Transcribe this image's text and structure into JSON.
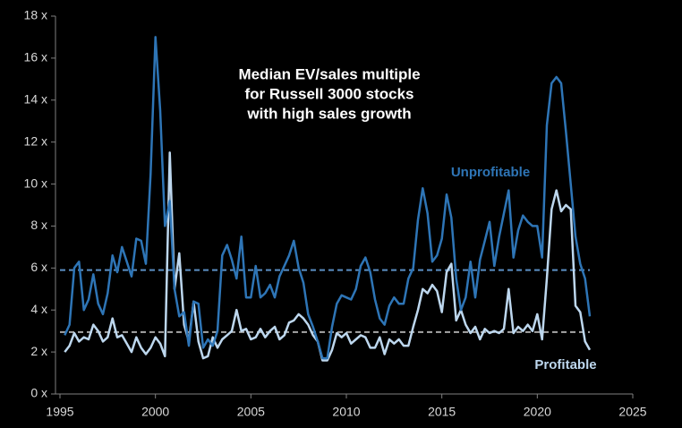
{
  "chart_data": {
    "type": "line",
    "title": [
      "Median EV/sales multiple",
      "for Russell 3000 stocks",
      "with high sales growth"
    ],
    "x": [
      1995.25,
      1995.5,
      1995.75,
      1996,
      1996.25,
      1996.5,
      1996.75,
      1997,
      1997.25,
      1997.5,
      1997.75,
      1998,
      1998.25,
      1998.5,
      1998.75,
      1999,
      1999.25,
      1999.5,
      1999.75,
      2000,
      2000.25,
      2000.5,
      2000.75,
      2001,
      2001.25,
      2001.5,
      2001.75,
      2002,
      2002.25,
      2002.5,
      2002.75,
      2003,
      2003.25,
      2003.5,
      2003.75,
      2004,
      2004.25,
      2004.5,
      2004.75,
      2005,
      2005.25,
      2005.5,
      2005.75,
      2006,
      2006.25,
      2006.5,
      2006.75,
      2007,
      2007.25,
      2007.5,
      2007.75,
      2008,
      2008.25,
      2008.5,
      2008.75,
      2009,
      2009.25,
      2009.5,
      2009.75,
      2010,
      2010.25,
      2010.5,
      2010.75,
      2011,
      2011.25,
      2011.5,
      2011.75,
      2012,
      2012.25,
      2012.5,
      2012.75,
      2013,
      2013.25,
      2013.5,
      2013.75,
      2014,
      2014.25,
      2014.5,
      2014.75,
      2015,
      2015.25,
      2015.5,
      2015.75,
      2016,
      2016.25,
      2016.5,
      2016.75,
      2017,
      2017.25,
      2017.5,
      2017.75,
      2018,
      2018.25,
      2018.5,
      2018.75,
      2019,
      2019.25,
      2019.5,
      2019.75,
      2020,
      2020.25,
      2020.5,
      2020.75,
      2021,
      2021.25,
      2021.5,
      2021.75,
      2022,
      2022.25,
      2022.5,
      2022.75
    ],
    "series": [
      {
        "name": "Unprofitable",
        "color": "#2e75b6",
        "values": [
          2.8,
          3.3,
          6.0,
          6.3,
          4.0,
          4.5,
          5.7,
          4.3,
          3.8,
          4.8,
          6.6,
          5.8,
          7.0,
          6.3,
          5.6,
          7.4,
          7.3,
          6.2,
          10.5,
          17.0,
          13.5,
          8.0,
          9.2,
          5.0,
          3.7,
          3.9,
          2.3,
          4.4,
          4.3,
          2.2,
          2.6,
          2.3,
          3.0,
          6.6,
          7.1,
          6.4,
          5.5,
          7.5,
          4.6,
          4.6,
          6.1,
          4.6,
          4.8,
          5.2,
          4.6,
          5.6,
          6.1,
          6.6,
          7.3,
          6.0,
          5.3,
          3.8,
          3.2,
          2.5,
          1.7,
          1.7,
          3.2,
          4.3,
          4.7,
          4.6,
          4.5,
          5.0,
          6.1,
          6.5,
          5.8,
          4.5,
          3.6,
          3.3,
          4.2,
          4.6,
          4.3,
          4.3,
          5.5,
          6.0,
          8.3,
          9.8,
          8.6,
          6.3,
          6.6,
          7.4,
          9.5,
          8.4,
          5.5,
          4.0,
          4.6,
          6.3,
          4.6,
          6.4,
          7.3,
          8.2,
          6.1,
          7.5,
          8.6,
          9.7,
          6.5,
          7.8,
          8.5,
          8.2,
          8.0,
          8.0,
          6.5,
          12.8,
          14.8,
          15.1,
          14.8,
          12.5,
          10.0,
          7.5,
          6.2,
          5.5,
          3.7
        ]
      },
      {
        "name": "Profitable",
        "color": "#bdd7ee",
        "values": [
          2.0,
          2.3,
          2.9,
          2.5,
          2.7,
          2.6,
          3.3,
          3.0,
          2.5,
          2.7,
          3.6,
          2.7,
          2.8,
          2.4,
          2.0,
          2.7,
          2.2,
          1.9,
          2.2,
          2.7,
          2.4,
          1.8,
          11.5,
          5.0,
          6.7,
          3.3,
          2.5,
          4.4,
          2.5,
          1.7,
          1.8,
          2.7,
          2.2,
          2.6,
          2.8,
          3.0,
          4.0,
          3.0,
          3.1,
          2.6,
          2.7,
          3.1,
          2.7,
          3.0,
          3.2,
          2.6,
          2.8,
          3.4,
          3.5,
          3.8,
          3.6,
          3.3,
          2.8,
          2.5,
          1.6,
          1.6,
          2.1,
          2.9,
          2.7,
          2.9,
          2.4,
          2.6,
          2.8,
          2.7,
          2.2,
          2.2,
          2.7,
          1.9,
          2.6,
          2.4,
          2.6,
          2.3,
          2.3,
          3.2,
          4.0,
          5.0,
          4.8,
          5.2,
          4.9,
          3.9,
          5.8,
          6.2,
          3.5,
          4.0,
          3.3,
          2.9,
          3.2,
          2.6,
          3.1,
          2.9,
          3.0,
          2.9,
          3.1,
          5.0,
          2.9,
          3.2,
          3.0,
          3.3,
          3.0,
          3.8,
          2.6,
          5.5,
          8.8,
          9.7,
          8.7,
          9.0,
          8.8,
          4.2,
          3.9,
          2.5,
          2.1
        ]
      }
    ],
    "reference_lines": [
      {
        "value": 5.9,
        "color": "#5b8fc4"
      },
      {
        "value": 2.95,
        "color": "#a6a6a6"
      }
    ],
    "xlim": [
      1995,
      2025
    ],
    "ylim": [
      0,
      18
    ],
    "xticks": [
      1995,
      2000,
      2005,
      2010,
      2015,
      2020,
      2025
    ],
    "yticks": [
      {
        "value": 0,
        "label": "0 x"
      },
      {
        "value": 2,
        "label": "2 x"
      },
      {
        "value": 4,
        "label": "4 x"
      },
      {
        "value": 6,
        "label": "6 x"
      },
      {
        "value": 8,
        "label": "8 x"
      },
      {
        "value": 10,
        "label": "10 x"
      },
      {
        "value": 12,
        "label": "12 x"
      },
      {
        "value": 14,
        "label": "14 x"
      },
      {
        "value": 16,
        "label": "16 x"
      },
      {
        "value": 18,
        "label": "18 x"
      }
    ],
    "annotations": [
      {
        "text": "Unprofitable",
        "series": 0
      },
      {
        "text": "Profitable",
        "series": 1
      }
    ]
  }
}
